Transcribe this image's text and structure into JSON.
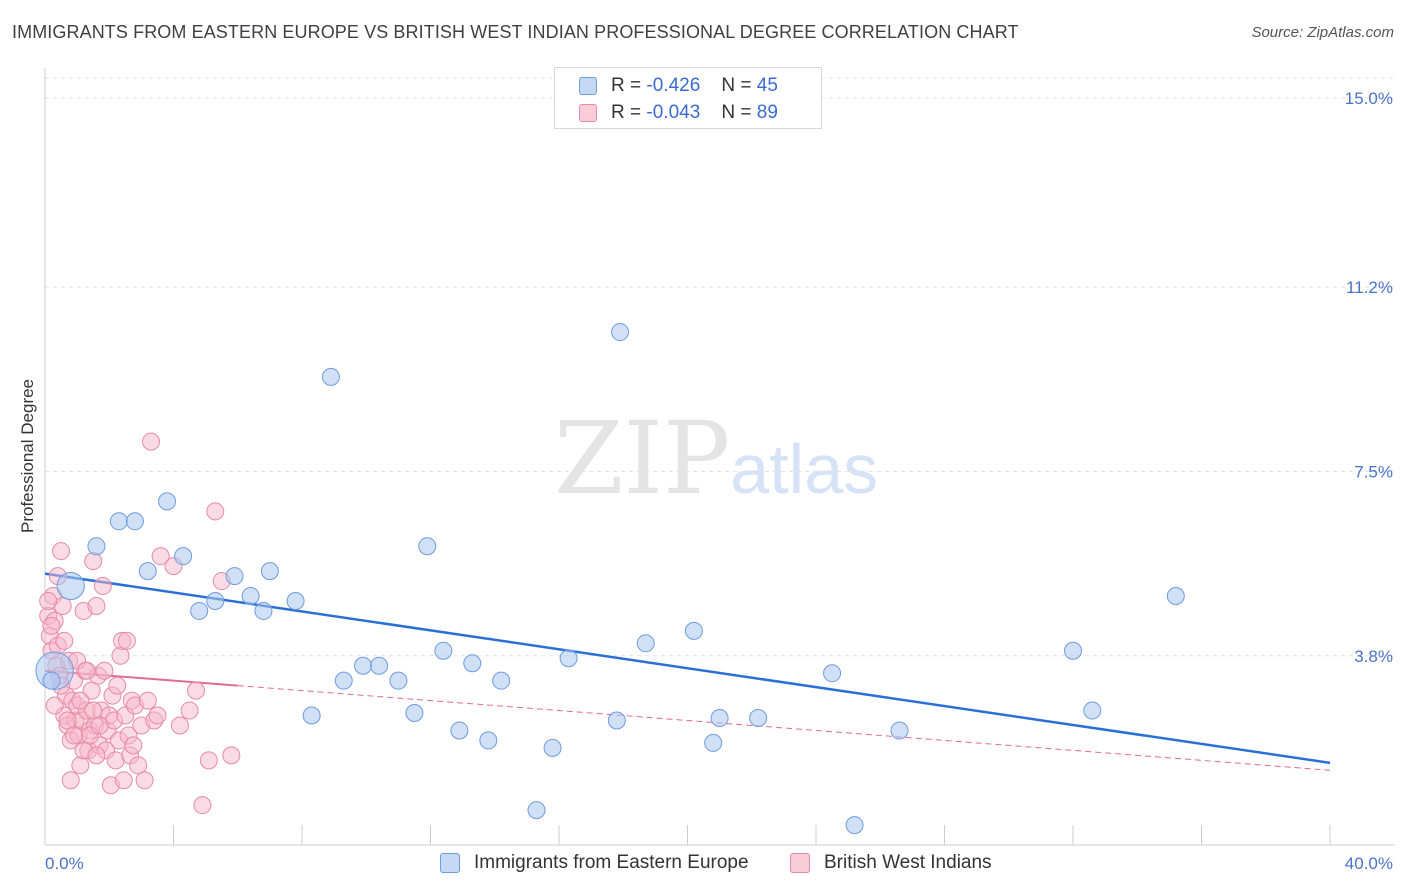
{
  "title": "IMMIGRANTS FROM EASTERN EUROPE VS BRITISH WEST INDIAN PROFESSIONAL DEGREE CORRELATION CHART",
  "source": "Source: ZipAtlas.com",
  "watermark": {
    "zip": "ZIP",
    "atlas": "atlas"
  },
  "legend_box": {
    "rows": [
      {
        "r_label": "R =",
        "r_value": "-0.426",
        "n_label": "N =",
        "n_value": "45"
      },
      {
        "r_label": "R =",
        "r_value": "-0.043",
        "n_label": "N =",
        "n_value": "89"
      }
    ]
  },
  "colors": {
    "blue_fill": "#a9c6ee",
    "blue_stroke": "#6f9be0",
    "blue_line": "#2a6fd6",
    "pink_fill": "#f5b8cb",
    "pink_stroke": "#e88aa8",
    "pink_line": "#e26a93",
    "grid": "#e3e3e3",
    "tick_label": "#4a72c9"
  },
  "chart_data": {
    "type": "scatter",
    "title": "IMMIGRANTS FROM EASTERN EUROPE VS BRITISH WEST INDIAN PROFESSIONAL DEGREE CORRELATION CHART",
    "xlabel": "",
    "ylabel": "Professional Degree",
    "xlim": [
      0,
      40
    ],
    "ylim": [
      0,
      15
    ],
    "x_tick_labels": [
      "0.0%",
      "40.0%"
    ],
    "y_ticks": [
      3.8,
      7.5,
      11.2,
      15.0
    ],
    "y_tick_labels": [
      "3.8%",
      "7.5%",
      "11.2%",
      "15.0%"
    ],
    "grid": "horizontal dashed",
    "legend": "top-center and bottom",
    "series": [
      {
        "name": "Immigrants from Eastern Europe",
        "r": -0.426,
        "n": 45,
        "trend": {
          "x0": 0,
          "y0": 5.45,
          "x1": 40,
          "y1": 1.65,
          "dashed_from": null
        },
        "points": [
          [
            0.3,
            3.5,
            2.2
          ],
          [
            0.8,
            5.2,
            1.6
          ],
          [
            1.6,
            6.0,
            1.0
          ],
          [
            2.3,
            6.5,
            1.0
          ],
          [
            2.8,
            6.5,
            1.0
          ],
          [
            3.2,
            5.5,
            1.0
          ],
          [
            3.8,
            6.9,
            1.0
          ],
          [
            4.3,
            5.8,
            1.0
          ],
          [
            4.8,
            4.7,
            1.0
          ],
          [
            5.3,
            4.9,
            1.0
          ],
          [
            5.9,
            5.4,
            1.0
          ],
          [
            6.4,
            5.0,
            1.0
          ],
          [
            6.8,
            4.7,
            1.0
          ],
          [
            7.0,
            5.5,
            1.0
          ],
          [
            7.8,
            4.9,
            1.0
          ],
          [
            8.3,
            2.6,
            1.0
          ],
          [
            8.9,
            9.4,
            1.0
          ],
          [
            9.3,
            3.3,
            1.0
          ],
          [
            9.9,
            3.6,
            1.0
          ],
          [
            10.4,
            3.6,
            1.0
          ],
          [
            11.0,
            3.3,
            1.0
          ],
          [
            11.5,
            2.65,
            1.0
          ],
          [
            11.9,
            6.0,
            1.0
          ],
          [
            12.4,
            3.9,
            1.0
          ],
          [
            12.9,
            2.3,
            1.0
          ],
          [
            13.3,
            3.65,
            1.0
          ],
          [
            13.8,
            2.1,
            1.0
          ],
          [
            14.2,
            3.3,
            1.0
          ],
          [
            15.3,
            0.7,
            1.0
          ],
          [
            15.8,
            1.95,
            1.0
          ],
          [
            16.3,
            3.75,
            1.0
          ],
          [
            17.8,
            2.5,
            1.0
          ],
          [
            17.9,
            10.3,
            1.0
          ],
          [
            18.7,
            4.05,
            1.0
          ],
          [
            20.2,
            4.3,
            1.0
          ],
          [
            20.8,
            2.05,
            1.0
          ],
          [
            21.0,
            2.55,
            1.0
          ],
          [
            22.2,
            2.55,
            1.0
          ],
          [
            24.5,
            3.45,
            1.0
          ],
          [
            25.2,
            0.4,
            1.0
          ],
          [
            26.6,
            2.3,
            1.0
          ],
          [
            32.0,
            3.9,
            1.0
          ],
          [
            32.6,
            2.7,
            1.0
          ],
          [
            35.2,
            5.0,
            1.0
          ],
          [
            0.2,
            3.3,
            1.0
          ]
        ]
      },
      {
        "name": "British West Indians",
        "r": -0.043,
        "n": 89,
        "trend": {
          "x0": 0,
          "y0": 3.5,
          "x1": 40,
          "y1": 1.5,
          "solid_until": 6.0
        },
        "points": [
          [
            0.1,
            4.6
          ],
          [
            0.15,
            4.2
          ],
          [
            0.2,
            3.9
          ],
          [
            0.25,
            5.0
          ],
          [
            0.3,
            4.5
          ],
          [
            0.35,
            3.6
          ],
          [
            0.4,
            4.0
          ],
          [
            0.45,
            3.4
          ],
          [
            0.5,
            5.9
          ],
          [
            0.55,
            4.8
          ],
          [
            0.6,
            2.6
          ],
          [
            0.65,
            3.0
          ],
          [
            0.7,
            2.4
          ],
          [
            0.75,
            3.7
          ],
          [
            0.8,
            2.1
          ],
          [
            0.85,
            2.9
          ],
          [
            0.9,
            3.3
          ],
          [
            0.95,
            2.5
          ],
          [
            1.0,
            2.8
          ],
          [
            1.05,
            2.2
          ],
          [
            1.1,
            1.6
          ],
          [
            1.15,
            2.5
          ],
          [
            1.2,
            4.7
          ],
          [
            1.25,
            3.5
          ],
          [
            1.3,
            2.7
          ],
          [
            1.35,
            1.9
          ],
          [
            1.4,
            2.3
          ],
          [
            1.45,
            3.1
          ],
          [
            1.5,
            5.7
          ],
          [
            1.55,
            2.4
          ],
          [
            1.6,
            4.8
          ],
          [
            1.65,
            3.4
          ],
          [
            1.7,
            2.0
          ],
          [
            1.75,
            2.7
          ],
          [
            1.8,
            5.2
          ],
          [
            1.85,
            3.5
          ],
          [
            1.9,
            1.9
          ],
          [
            1.95,
            2.3
          ],
          [
            2.0,
            2.6
          ],
          [
            2.05,
            1.2
          ],
          [
            2.1,
            3.0
          ],
          [
            2.15,
            2.5
          ],
          [
            2.2,
            1.7
          ],
          [
            2.25,
            3.2
          ],
          [
            2.3,
            2.1
          ],
          [
            2.35,
            3.8
          ],
          [
            2.4,
            4.1
          ],
          [
            2.45,
            1.3
          ],
          [
            2.5,
            2.6
          ],
          [
            2.55,
            4.1
          ],
          [
            2.6,
            2.2
          ],
          [
            2.65,
            1.8
          ],
          [
            2.7,
            2.9
          ],
          [
            2.75,
            2.0
          ],
          [
            2.8,
            2.8
          ],
          [
            2.9,
            1.6
          ],
          [
            3.0,
            2.4
          ],
          [
            3.1,
            1.3
          ],
          [
            3.2,
            2.9
          ],
          [
            3.3,
            8.1
          ],
          [
            3.4,
            2.5
          ],
          [
            3.5,
            2.6
          ],
          [
            3.6,
            5.8
          ],
          [
            4.0,
            5.6
          ],
          [
            4.2,
            2.4
          ],
          [
            4.5,
            2.7
          ],
          [
            4.7,
            3.1
          ],
          [
            4.9,
            0.8
          ],
          [
            5.1,
            1.7
          ],
          [
            5.3,
            6.7
          ],
          [
            5.5,
            5.3
          ],
          [
            5.8,
            1.8
          ],
          [
            0.1,
            4.9
          ],
          [
            0.2,
            4.4
          ],
          [
            0.3,
            2.8
          ],
          [
            0.4,
            5.4
          ],
          [
            0.5,
            3.2
          ],
          [
            0.6,
            4.1
          ],
          [
            0.7,
            2.5
          ],
          [
            0.8,
            1.3
          ],
          [
            0.9,
            2.2
          ],
          [
            1.0,
            3.7
          ],
          [
            1.1,
            2.9
          ],
          [
            1.2,
            1.9
          ],
          [
            1.3,
            3.5
          ],
          [
            1.4,
            2.2
          ],
          [
            1.5,
            2.7
          ],
          [
            1.6,
            1.8
          ],
          [
            1.7,
            2.4
          ]
        ]
      }
    ]
  },
  "bottom_legend": {
    "items": [
      {
        "label": "Immigrants from Eastern Europe"
      },
      {
        "label": "British West Indians"
      }
    ]
  }
}
